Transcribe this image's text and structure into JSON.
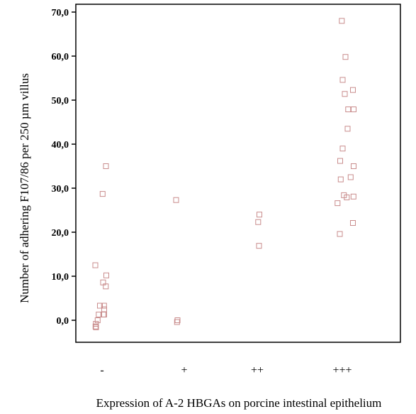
{
  "chart_data": {
    "type": "scatter",
    "title": "",
    "xlabel": "Expression of A-2 HBGAs on porcine intestinal epithelium",
    "ylabel": "Number of adhering F107/86 per 250 µm villus",
    "categories": [
      "-",
      "+",
      "++",
      "+++"
    ],
    "ylim": [
      -5,
      72
    ],
    "yticks": [
      0.0,
      10.0,
      20.0,
      30.0,
      40.0,
      50.0,
      60.0,
      70.0
    ],
    "ytick_labels": [
      "0,0",
      "10,0",
      "20,0",
      "30,0",
      "40,0",
      "50,0",
      "60,0",
      "70,0"
    ],
    "grid": false,
    "marker": "open-square",
    "marker_color": "#c98c8c",
    "points": [
      {
        "category": "-",
        "offset": 0.22,
        "y": 35.0
      },
      {
        "category": "-",
        "offset": 0.03,
        "y": 28.7
      },
      {
        "category": "-",
        "offset": -0.38,
        "y": 12.5
      },
      {
        "category": "-",
        "offset": 0.24,
        "y": 10.2
      },
      {
        "category": "-",
        "offset": 0.06,
        "y": 8.6
      },
      {
        "category": "-",
        "offset": 0.21,
        "y": 7.7
      },
      {
        "category": "-",
        "offset": -0.12,
        "y": 3.3
      },
      {
        "category": "-",
        "offset": 0.11,
        "y": 3.3
      },
      {
        "category": "-",
        "offset": 0.12,
        "y": 2.5
      },
      {
        "category": "-",
        "offset": -0.19,
        "y": 1.3
      },
      {
        "category": "-",
        "offset": 0.07,
        "y": 1.3
      },
      {
        "category": "-",
        "offset": 0.12,
        "y": 1.3
      },
      {
        "category": "-",
        "offset": -0.25,
        "y": 0.0
      },
      {
        "category": "-",
        "offset": -0.35,
        "y": -0.8
      },
      {
        "category": "-",
        "offset": -0.37,
        "y": -1.4
      },
      {
        "category": "-",
        "offset": -0.34,
        "y": -1.6
      },
      {
        "category": "+",
        "offset": -0.46,
        "y": 27.3
      },
      {
        "category": "+",
        "offset": -0.38,
        "y": 0.0
      },
      {
        "category": "+",
        "offset": -0.41,
        "y": -0.4
      },
      {
        "category": "++",
        "offset": 0.12,
        "y": 24.0
      },
      {
        "category": "++",
        "offset": 0.05,
        "y": 22.3
      },
      {
        "category": "++",
        "offset": 0.1,
        "y": 16.9
      },
      {
        "category": "+++",
        "offset": -0.03,
        "y": 68.0
      },
      {
        "category": "+++",
        "offset": 0.18,
        "y": 59.8
      },
      {
        "category": "+++",
        "offset": 0.02,
        "y": 54.6
      },
      {
        "category": "+++",
        "offset": 0.6,
        "y": 52.3
      },
      {
        "category": "+++",
        "offset": 0.14,
        "y": 51.4
      },
      {
        "category": "+++",
        "offset": 0.33,
        "y": 47.9
      },
      {
        "category": "+++",
        "offset": 0.64,
        "y": 47.9
      },
      {
        "category": "+++",
        "offset": 0.3,
        "y": 43.5
      },
      {
        "category": "+++",
        "offset": 0.02,
        "y": 39.0
      },
      {
        "category": "+++",
        "offset": -0.12,
        "y": 36.2
      },
      {
        "category": "+++",
        "offset": 0.64,
        "y": 35.0
      },
      {
        "category": "+++",
        "offset": 0.47,
        "y": 32.5
      },
      {
        "category": "+++",
        "offset": -0.09,
        "y": 32.0
      },
      {
        "category": "+++",
        "offset": 0.09,
        "y": 28.4
      },
      {
        "category": "+++",
        "offset": 0.63,
        "y": 28.1
      },
      {
        "category": "+++",
        "offset": 0.25,
        "y": 27.9
      },
      {
        "category": "+++",
        "offset": -0.27,
        "y": 26.6
      },
      {
        "category": "+++",
        "offset": 0.6,
        "y": 22.1
      },
      {
        "category": "+++",
        "offset": -0.14,
        "y": 19.6
      }
    ]
  }
}
